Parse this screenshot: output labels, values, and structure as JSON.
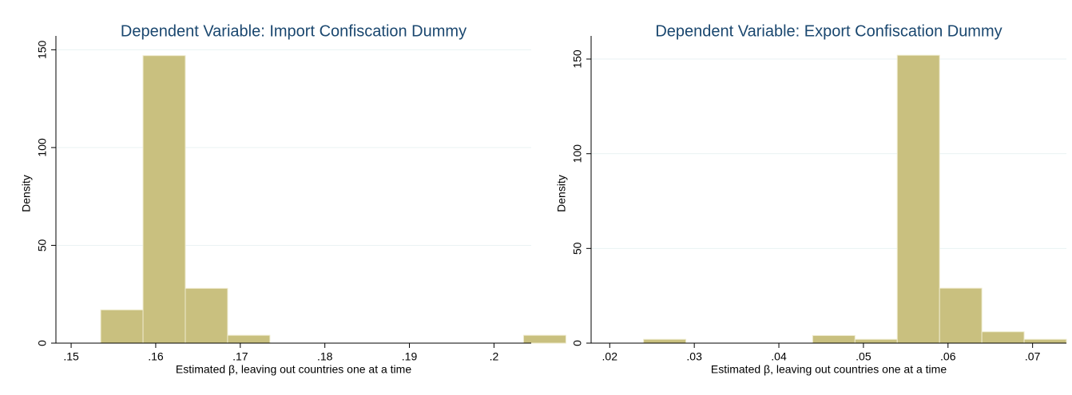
{
  "chart_data": [
    {
      "type": "histogram",
      "title": "Dependent Variable: Import Confiscation Dummy",
      "xlabel": "Estimated β, leaving out countries one at a time",
      "ylabel": "Density",
      "bins": [
        0.1535,
        0.1585,
        0.1635,
        0.1685,
        0.1735,
        0.1785,
        0.1835,
        0.1885,
        0.1935,
        0.1985,
        0.2035,
        0.2085
      ],
      "values": [
        17,
        147,
        28,
        4,
        0,
        0,
        0,
        0,
        0,
        0,
        4
      ],
      "color": "#c9c07f",
      "xlim": [
        0.1482,
        0.2044
      ],
      "ylim": [
        0,
        153
      ],
      "xticks": [
        {
          "value": 0.15,
          "label": ".15"
        },
        {
          "value": 0.16,
          "label": ".16"
        },
        {
          "value": 0.17,
          "label": ".17"
        },
        {
          "value": 0.18,
          "label": ".18"
        },
        {
          "value": 0.19,
          "label": ".19"
        },
        {
          "value": 0.2,
          "label": ".2"
        }
      ],
      "yticks": [
        0,
        50,
        100,
        150
      ],
      "grid": true
    },
    {
      "type": "histogram",
      "title": "Dependent Variable: Export Confiscation Dummy",
      "xlabel": "Estimated β, leaving out countries one at a time",
      "ylabel": "Density",
      "bins": [
        0.024,
        0.029,
        0.034,
        0.039,
        0.044,
        0.049,
        0.054,
        0.059,
        0.064,
        0.069,
        0.074
      ],
      "values": [
        2,
        0,
        0,
        0,
        4,
        2,
        152,
        29,
        6,
        2
      ],
      "color": "#c9c07f",
      "xlim": [
        0.0178,
        0.074
      ],
      "ylim": [
        0,
        158
      ],
      "xticks": [
        {
          "value": 0.02,
          "label": ".02"
        },
        {
          "value": 0.03,
          "label": ".03"
        },
        {
          "value": 0.04,
          "label": ".04"
        },
        {
          "value": 0.05,
          "label": ".05"
        },
        {
          "value": 0.06,
          "label": ".06"
        },
        {
          "value": 0.07,
          "label": ".07"
        }
      ],
      "yticks": [
        0,
        50,
        100,
        150
      ],
      "grid": true
    }
  ]
}
